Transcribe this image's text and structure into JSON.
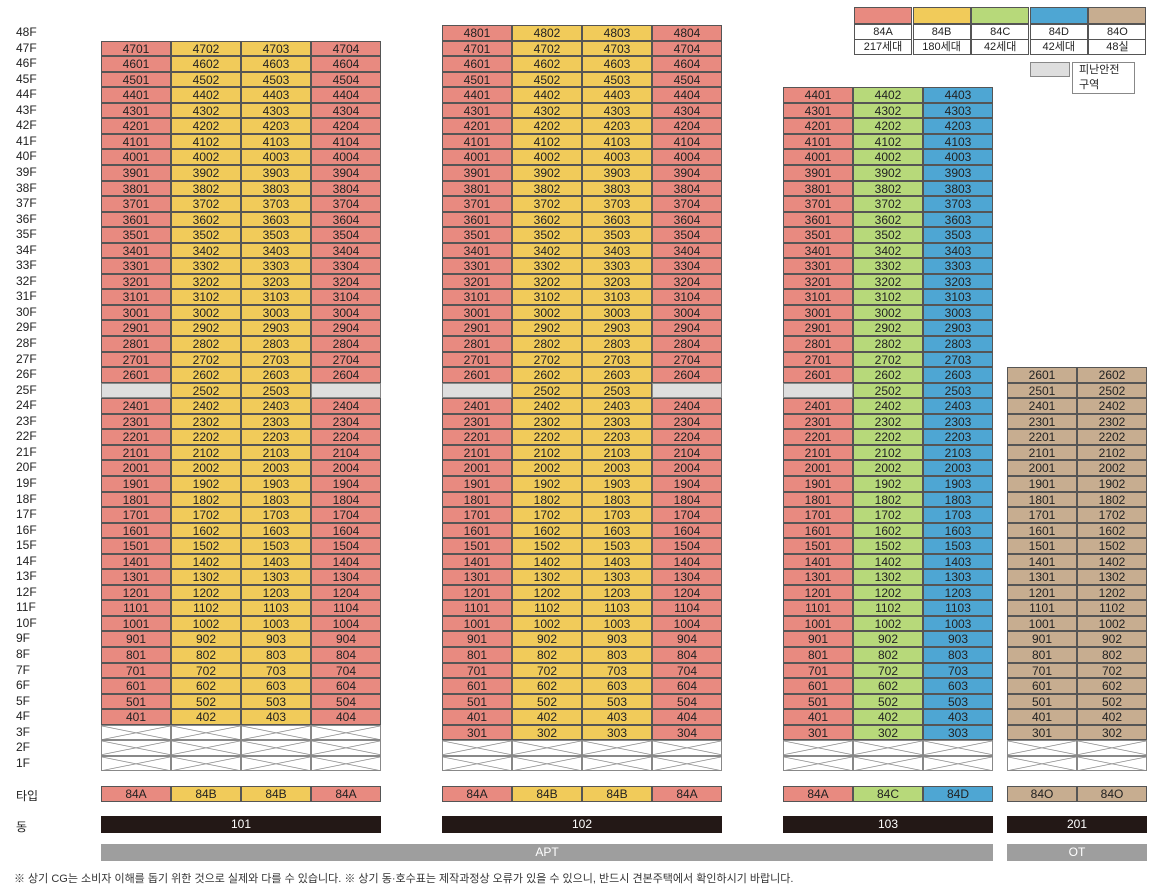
{
  "colors": {
    "A": "#e88a80",
    "B": "#f1cb5a",
    "C": "#b7d97a",
    "D": "#4ea6d3",
    "O": "#c7ad90",
    "refuge": "#dedede",
    "dong": "#231816",
    "group": "#9e9e9e"
  },
  "floors": [
    "48F",
    "47F",
    "46F",
    "45F",
    "44F",
    "43F",
    "42F",
    "41F",
    "40F",
    "39F",
    "38F",
    "37F",
    "36F",
    "35F",
    "34F",
    "33F",
    "32F",
    "31F",
    "30F",
    "29F",
    "28F",
    "27F",
    "26F",
    "25F",
    "24F",
    "23F",
    "22F",
    "21F",
    "20F",
    "19F",
    "18F",
    "17F",
    "16F",
    "15F",
    "14F",
    "13F",
    "12F",
    "11F",
    "10F",
    "9F",
    "8F",
    "7F",
    "6F",
    "5F",
    "4F",
    "3F",
    "2F",
    "1F"
  ],
  "labels": {
    "type": "타입",
    "dong": "동"
  },
  "legend": {
    "types": [
      {
        "type": "84A",
        "count": "217세대",
        "color_key": "A"
      },
      {
        "type": "84B",
        "count": "180세대",
        "color_key": "B"
      },
      {
        "type": "84C",
        "count": "42세대",
        "color_key": "C"
      },
      {
        "type": "84D",
        "count": "42세대",
        "color_key": "D"
      },
      {
        "type": "84O",
        "count": "48실",
        "color_key": "O"
      }
    ],
    "refuge_label": "피난안전구역"
  },
  "buildings": [
    {
      "dong": "101",
      "types": [
        "84A",
        "84B",
        "84B",
        "84A"
      ],
      "color_keys": [
        "A",
        "B",
        "B",
        "A"
      ],
      "top_floor": 47,
      "min_floor": 4,
      "partial_25": [
        false,
        true,
        true,
        false
      ]
    },
    {
      "dong": "102",
      "types": [
        "84A",
        "84B",
        "84B",
        "84A"
      ],
      "color_keys": [
        "A",
        "B",
        "B",
        "A"
      ],
      "top_floor": 48,
      "min_floor": 3,
      "partial_25": [
        false,
        true,
        true,
        false
      ]
    },
    {
      "dong": "103",
      "types": [
        "84A",
        "84C",
        "84D"
      ],
      "color_keys": [
        "A",
        "C",
        "D"
      ],
      "top_floor": 44,
      "min_floor": 3,
      "partial_25": [
        false,
        true,
        true
      ]
    },
    {
      "dong": "201",
      "types": [
        "84O",
        "84O"
      ],
      "color_keys": [
        "O",
        "O"
      ],
      "top_floor": 26,
      "min_floor": 3,
      "partial_25": [
        true,
        true
      ]
    }
  ],
  "groups": [
    {
      "label": "APT"
    },
    {
      "label": "OT"
    }
  ],
  "footnote": "※ 상기 CG는 소비자 이해를 돕기 위한 것으로 실제와 다를 수 있습니다.  ※ 상기 동·호수표는 제작과정상 오류가 있을 수 있으니, 반드시 견본주택에서 확인하시기 바랍니다."
}
